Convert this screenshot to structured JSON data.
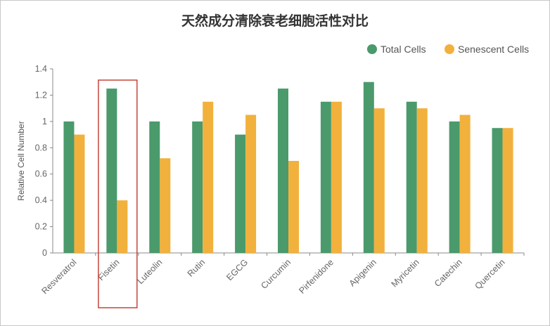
{
  "chart_data": {
    "type": "bar",
    "title": "天然成分清除衰老细胞活性对比",
    "xlabel": "",
    "ylabel": "Relative Cell Number",
    "ylim": [
      0,
      1.4
    ],
    "yticks": [
      "0",
      "0.2",
      "0.4",
      "0.6",
      "0.8",
      "1",
      "1.2",
      "1.4"
    ],
    "categories": [
      "Resveratrol",
      "Fisetin",
      "Luteolin",
      "Rutin",
      "EGCG",
      "Curcumin",
      "Pirfenidone",
      "Apigenin",
      "Myricetin",
      "Catechin",
      "Quercetin"
    ],
    "series": [
      {
        "name": "Total Cells",
        "color": "#4a9a6c",
        "values": [
          1.0,
          1.25,
          1.0,
          1.0,
          0.9,
          1.25,
          1.15,
          1.3,
          1.15,
          1.0,
          0.95
        ]
      },
      {
        "name": "Senescent Cells",
        "color": "#f2b13c",
        "values": [
          0.9,
          0.4,
          0.72,
          1.15,
          1.05,
          0.7,
          1.15,
          1.1,
          1.1,
          1.05,
          0.95
        ]
      }
    ],
    "legend_position": "top-right",
    "grid": false,
    "highlight_category": "Fisetin",
    "highlight_color": "#c0392b"
  }
}
